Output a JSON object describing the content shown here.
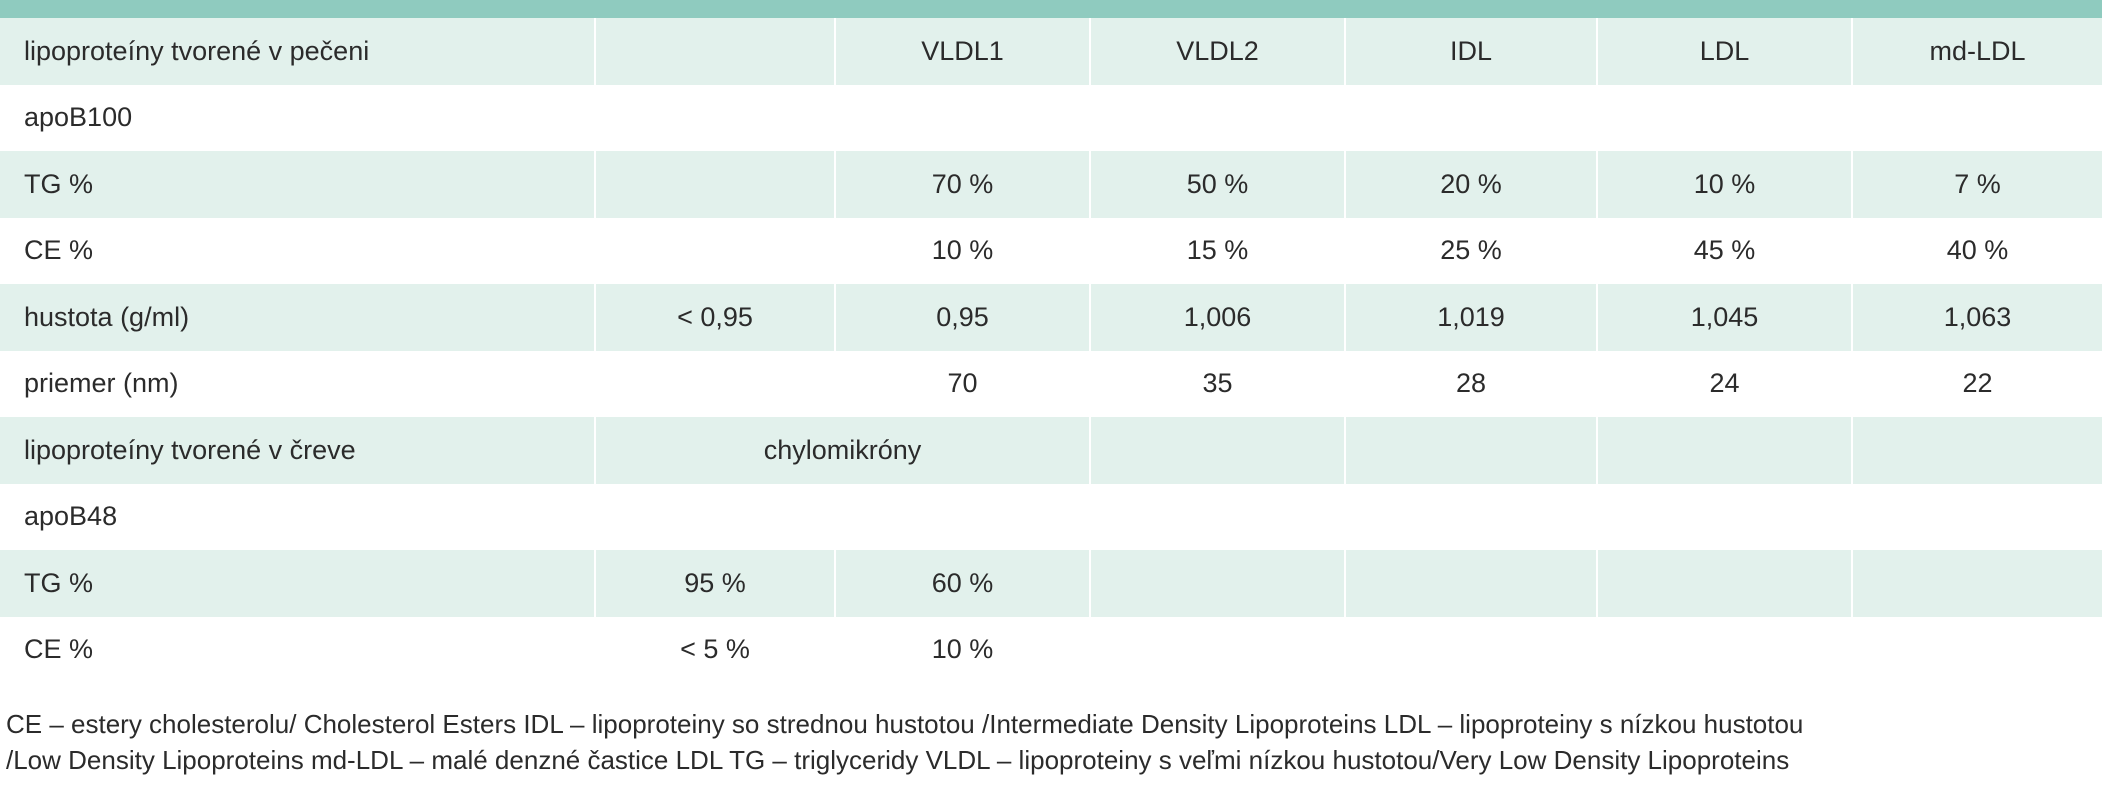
{
  "colors": {
    "header_bar": "#8fcbbf",
    "row_shade": "#e2f1ec",
    "row_plain": "#ffffff"
  },
  "table": {
    "header": {
      "label": "lipoproteíny tvorené v pečeni",
      "col1": "",
      "col2": "VLDL1",
      "col3": "VLDL2",
      "col4": "IDL",
      "col5": "LDL",
      "col6": "md-LDL"
    },
    "rows": [
      {
        "label": "apoB100",
        "c1": "",
        "c2": "",
        "c3": "",
        "c4": "",
        "c5": "",
        "c6": ""
      },
      {
        "label": "TG %",
        "c1": "",
        "c2": "70 %",
        "c3": "50 %",
        "c4": "20 %",
        "c5": "10 %",
        "c6": "7 %"
      },
      {
        "label": "CE %",
        "c1": "",
        "c2": "10 %",
        "c3": "15 %",
        "c4": "25 %",
        "c5": "45 %",
        "c6": "40 %"
      },
      {
        "label": "hustota (g/ml)",
        "c1": "< 0,95",
        "c2": "0,95",
        "c3": "1,006",
        "c4": "1,019",
        "c5": "1,045",
        "c6": "1,063"
      },
      {
        "label": "priemer (nm)",
        "c1": "",
        "c2": "70",
        "c3": "35",
        "c4": "28",
        "c5": "24",
        "c6": "22"
      },
      {
        "label": "lipoproteíny tvorené v čreve",
        "span12": "chylomikróny",
        "c3": "",
        "c4": "",
        "c5": "",
        "c6": ""
      },
      {
        "label": "apoB48",
        "c1": "",
        "c2": "",
        "c3": "",
        "c4": "",
        "c5": "",
        "c6": ""
      },
      {
        "label": "TG %",
        "c1": "95 %",
        "c2": "60 %",
        "c3": "",
        "c4": "",
        "c5": "",
        "c6": ""
      },
      {
        "label": "CE %",
        "c1": "< 5 %",
        "c2": "10 %",
        "c3": "",
        "c4": "",
        "c5": "",
        "c6": ""
      }
    ]
  },
  "footnote": {
    "line1": "CE – estery cholesterolu/ Cholesterol Esters IDL – lipoproteiny so strednou hustotou /Intermediate Density Lipoproteins LDL – lipoproteiny s nízkou hustotou",
    "line2": "/Low Density Lipoproteins md-LDL – malé denzné častice LDL TG – triglyceridy VLDL – lipoproteiny s veľmi nízkou hustotou/Very Low Density Lipoproteins"
  }
}
